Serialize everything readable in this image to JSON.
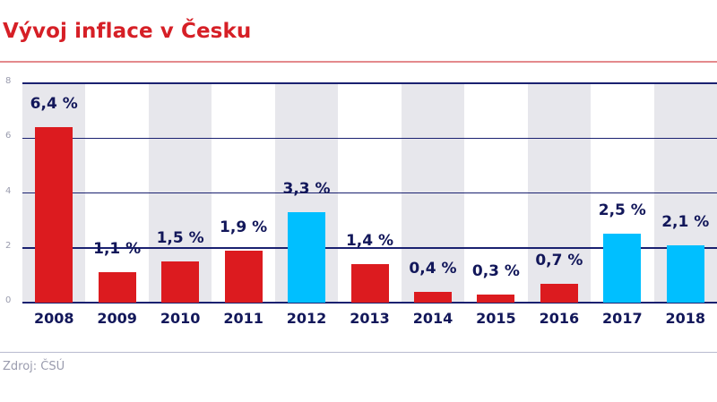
{
  "title": "Vývoj inflace v Česku",
  "source": "Zdroj: ČSÚ",
  "colors": {
    "title": "#d61f26",
    "bar_red": "#dc1b1f",
    "bar_blue": "#00bfff",
    "label": "#12175a",
    "band": "#e7e7ec",
    "grid": "#1a2170"
  },
  "y_ticks": [
    "0",
    "2",
    "4",
    "6",
    "8"
  ],
  "chart_data": {
    "type": "bar",
    "title": "Vývoj inflace v Česku",
    "xlabel": "",
    "ylabel": "",
    "ylim": [
      0,
      8
    ],
    "y_ticks": [
      0,
      2,
      4,
      6,
      8
    ],
    "grid": true,
    "categories": [
      "2008",
      "2009",
      "2010",
      "2011",
      "2012",
      "2013",
      "2014",
      "2015",
      "2016",
      "2017",
      "2018"
    ],
    "values": [
      6.4,
      1.1,
      1.5,
      1.9,
      3.3,
      1.4,
      0.4,
      0.3,
      0.7,
      2.5,
      2.1
    ],
    "labels": [
      "6,4 %",
      "1,1 %",
      "1,5 %",
      "1,9 %",
      "3,3 %",
      "1,4 %",
      "0,4 %",
      "0,3 %",
      "0,7 %",
      "2,5 %",
      "2,1 %"
    ],
    "bar_colors": [
      "red",
      "red",
      "red",
      "red",
      "blue",
      "red",
      "red",
      "red",
      "red",
      "blue",
      "blue"
    ],
    "source": "Zdroj: ČSÚ"
  }
}
